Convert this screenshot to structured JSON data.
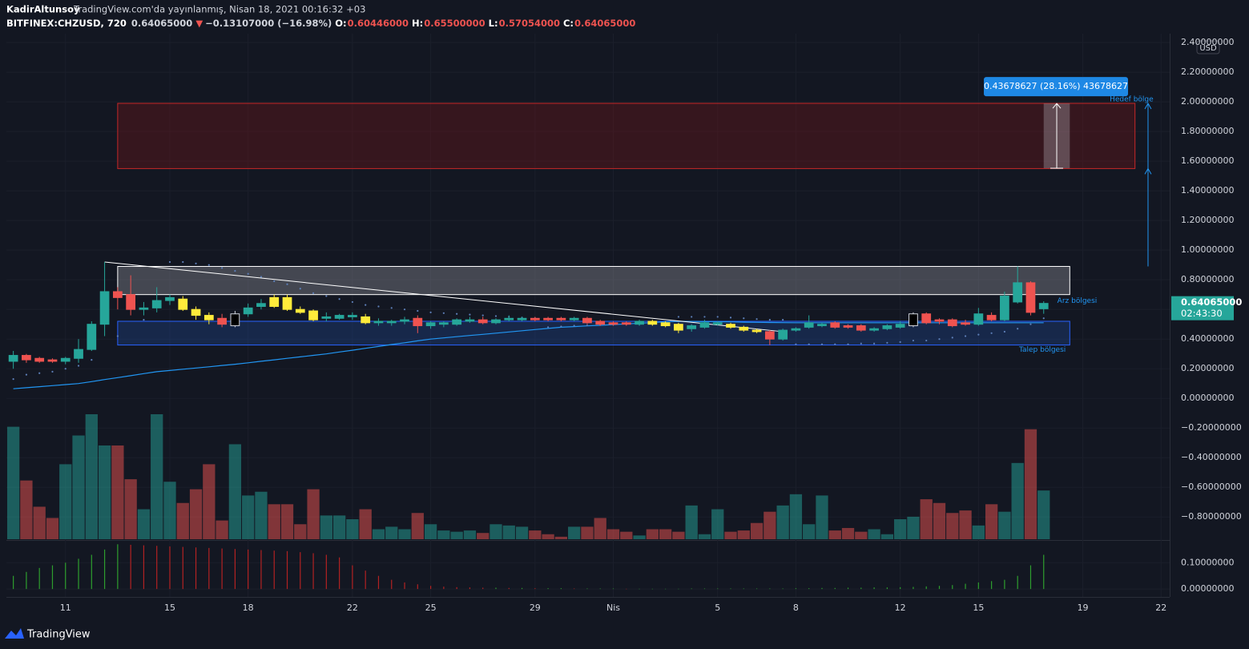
{
  "chart_data": {
    "type": "candlestick",
    "author": "KadirAltunsoy",
    "published": "TradingView.com'da yayınlanmış, Nisan 18, 2021 00:16:32 +03",
    "symbol": "BITFINEX:CHZUSD, 720",
    "last": "0.64065000",
    "change_arrow": "▼",
    "change": "−0.13107000 (−16.98%)",
    "ohlc": [
      {
        "key": "O:",
        "value": "0.60446000"
      },
      {
        "key": "H:",
        "value": "0.65500000"
      },
      {
        "key": "L:",
        "value": "0.57054000"
      },
      {
        "key": "C:",
        "value": "0.64065000"
      }
    ],
    "currency": "USD",
    "price_tag": {
      "value": "0.64065000",
      "countdown": "02:43:30"
    },
    "brand": "TradingView",
    "xlim": [
      -0.53,
      88.66
    ],
    "xticks": [
      {
        "value": 4,
        "label": "11"
      },
      {
        "value": 12,
        "label": "15"
      },
      {
        "value": 18,
        "label": "18"
      },
      {
        "value": 26,
        "label": "22"
      },
      {
        "value": 32,
        "label": "25"
      },
      {
        "value": 40,
        "label": "29"
      },
      {
        "value": 46,
        "label": "Nis"
      },
      {
        "value": 54,
        "label": "5"
      },
      {
        "value": 60,
        "label": "8"
      },
      {
        "value": 68,
        "label": "12"
      },
      {
        "value": 74,
        "label": "15"
      },
      {
        "value": 82,
        "label": "19"
      },
      {
        "value": 88,
        "label": "22"
      }
    ],
    "ylim": [
      -0.95,
      2.46
    ],
    "yticks": [
      {
        "value": 2.4,
        "label": "2.40000000"
      },
      {
        "value": 2.2,
        "label": "2.20000000"
      },
      {
        "value": 2.0,
        "label": "2.00000000"
      },
      {
        "value": 1.8,
        "label": "1.80000000"
      },
      {
        "value": 1.6,
        "label": "1.60000000"
      },
      {
        "value": 1.4,
        "label": "1.40000000"
      },
      {
        "value": 1.2,
        "label": "1.20000000"
      },
      {
        "value": 1.0,
        "label": "1.00000000"
      },
      {
        "value": 0.8,
        "label": "0.80000000"
      },
      {
        "value": 0.6,
        "label": "0.60000000"
      },
      {
        "value": 0.4,
        "label": "0.40000000"
      },
      {
        "value": 0.2,
        "label": "0.20000000"
      },
      {
        "value": 0,
        "label": "0.00000000"
      },
      {
        "value": -0.2,
        "label": "−0.20000000"
      },
      {
        "value": -0.4,
        "label": "−0.40000000"
      },
      {
        "value": -0.6,
        "label": "−0.60000000"
      },
      {
        "value": -0.8,
        "label": "−0.80000000"
      }
    ],
    "y2lim": [
      -0.03,
      0.18
    ],
    "y2ticks": [
      {
        "value": 0.1,
        "label": "0.10000000"
      },
      {
        "value": 0,
        "label": "0.00000000"
      }
    ],
    "grid": true,
    "candles": [
      [
        0.25,
        0.32,
        0.2,
        0.29
      ],
      [
        0.29,
        0.3,
        0.24,
        0.26
      ],
      [
        0.27,
        0.28,
        0.24,
        0.25
      ],
      [
        0.26,
        0.27,
        0.24,
        0.25
      ],
      [
        0.25,
        0.28,
        0.23,
        0.27
      ],
      [
        0.27,
        0.4,
        0.24,
        0.33
      ],
      [
        0.33,
        0.52,
        0.32,
        0.5
      ],
      [
        0.5,
        0.92,
        0.42,
        0.72
      ],
      [
        0.72,
        0.75,
        0.6,
        0.68
      ],
      [
        0.7,
        0.83,
        0.56,
        0.6
      ],
      [
        0.6,
        0.65,
        0.56,
        0.61
      ],
      [
        0.61,
        0.75,
        0.58,
        0.66
      ],
      [
        0.66,
        0.7,
        0.63,
        0.68
      ],
      [
        0.67,
        0.69,
        0.59,
        0.6
      ],
      [
        0.6,
        0.62,
        0.53,
        0.56
      ],
      [
        0.56,
        0.58,
        0.5,
        0.53
      ],
      [
        0.54,
        0.57,
        0.48,
        0.5
      ],
      [
        0.49,
        0.59,
        0.48,
        0.57
      ],
      [
        0.57,
        0.64,
        0.55,
        0.61
      ],
      [
        0.62,
        0.67,
        0.6,
        0.64
      ],
      [
        0.68,
        0.7,
        0.61,
        0.62
      ],
      [
        0.68,
        0.7,
        0.59,
        0.6
      ],
      [
        0.6,
        0.62,
        0.57,
        0.58
      ],
      [
        0.59,
        0.6,
        0.52,
        0.53
      ],
      [
        0.54,
        0.58,
        0.52,
        0.55
      ],
      [
        0.54,
        0.57,
        0.53,
        0.56
      ],
      [
        0.55,
        0.58,
        0.53,
        0.56
      ],
      [
        0.55,
        0.57,
        0.5,
        0.51
      ],
      [
        0.51,
        0.54,
        0.49,
        0.52
      ],
      [
        0.51,
        0.53,
        0.49,
        0.52
      ],
      [
        0.52,
        0.55,
        0.5,
        0.53
      ],
      [
        0.54,
        0.56,
        0.44,
        0.49
      ],
      [
        0.49,
        0.52,
        0.47,
        0.51
      ],
      [
        0.5,
        0.52,
        0.48,
        0.51
      ],
      [
        0.5,
        0.54,
        0.49,
        0.53
      ],
      [
        0.52,
        0.55,
        0.51,
        0.53
      ],
      [
        0.53,
        0.55,
        0.5,
        0.51
      ],
      [
        0.51,
        0.54,
        0.5,
        0.53
      ],
      [
        0.53,
        0.56,
        0.52,
        0.54
      ],
      [
        0.53,
        0.55,
        0.52,
        0.54
      ],
      [
        0.54,
        0.55,
        0.52,
        0.53
      ],
      [
        0.54,
        0.55,
        0.52,
        0.53
      ],
      [
        0.54,
        0.55,
        0.52,
        0.53
      ],
      [
        0.53,
        0.55,
        0.52,
        0.54
      ],
      [
        0.54,
        0.55,
        0.5,
        0.51
      ],
      [
        0.52,
        0.53,
        0.49,
        0.5
      ],
      [
        0.51,
        0.52,
        0.49,
        0.5
      ],
      [
        0.51,
        0.52,
        0.49,
        0.5
      ],
      [
        0.5,
        0.53,
        0.49,
        0.52
      ],
      [
        0.52,
        0.53,
        0.49,
        0.5
      ],
      [
        0.51,
        0.52,
        0.48,
        0.49
      ],
      [
        0.5,
        0.51,
        0.44,
        0.46
      ],
      [
        0.47,
        0.5,
        0.45,
        0.49
      ],
      [
        0.48,
        0.53,
        0.47,
        0.51
      ],
      [
        0.5,
        0.52,
        0.49,
        0.51
      ],
      [
        0.5,
        0.51,
        0.47,
        0.48
      ],
      [
        0.48,
        0.49,
        0.45,
        0.46
      ],
      [
        0.46,
        0.47,
        0.44,
        0.45
      ],
      [
        0.45,
        0.46,
        0.36,
        0.4
      ],
      [
        0.4,
        0.47,
        0.39,
        0.46
      ],
      [
        0.46,
        0.48,
        0.45,
        0.47
      ],
      [
        0.48,
        0.56,
        0.47,
        0.51
      ],
      [
        0.49,
        0.51,
        0.48,
        0.5
      ],
      [
        0.51,
        0.52,
        0.47,
        0.48
      ],
      [
        0.49,
        0.5,
        0.47,
        0.48
      ],
      [
        0.49,
        0.5,
        0.45,
        0.46
      ],
      [
        0.46,
        0.48,
        0.45,
        0.47
      ],
      [
        0.47,
        0.5,
        0.46,
        0.49
      ],
      [
        0.48,
        0.52,
        0.47,
        0.5
      ],
      [
        0.49,
        0.58,
        0.48,
        0.57
      ],
      [
        0.57,
        0.58,
        0.5,
        0.51
      ],
      [
        0.53,
        0.54,
        0.5,
        0.52
      ],
      [
        0.53,
        0.54,
        0.48,
        0.49
      ],
      [
        0.51,
        0.53,
        0.49,
        0.5
      ],
      [
        0.5,
        0.61,
        0.49,
        0.57
      ],
      [
        0.56,
        0.58,
        0.52,
        0.53
      ],
      [
        0.53,
        0.72,
        0.52,
        0.69
      ],
      [
        0.65,
        0.89,
        0.64,
        0.78
      ],
      [
        0.78,
        0.79,
        0.56,
        0.58
      ],
      [
        0.60446,
        0.655,
        0.57054,
        0.64065
      ]
    ],
    "candle_colors": [
      "#26a69a",
      "#ef5350",
      "#ef5350",
      "#ef5350",
      "#26a69a",
      "#26a69a",
      "#26a69a",
      "#26a69a",
      "#ef5350",
      "#ef5350",
      "#26a69a",
      "#26a69a",
      "#26a69a",
      "#ffeb3b",
      "#ffeb3b",
      "#ffeb3b",
      "#ef5350",
      "#000000",
      "#26a69a",
      "#26a69a",
      "#ffeb3b",
      "#ffeb3b",
      "#ffeb3b",
      "#ffeb3b",
      "#26a69a",
      "#26a69a",
      "#26a69a",
      "#ffeb3b",
      "#26a69a",
      "#26a69a",
      "#26a69a",
      "#ef5350",
      "#26a69a",
      "#26a69a",
      "#26a69a",
      "#26a69a",
      "#ef5350",
      "#26a69a",
      "#26a69a",
      "#26a69a",
      "#ef5350",
      "#ef5350",
      "#ef5350",
      "#26a69a",
      "#ef5350",
      "#ef5350",
      "#ef5350",
      "#ef5350",
      "#26a69a",
      "#ffeb3b",
      "#ffeb3b",
      "#ffeb3b",
      "#26a69a",
      "#26a69a",
      "#26a69a",
      "#ffeb3b",
      "#ffeb3b",
      "#ffeb3b",
      "#ef5350",
      "#26a69a",
      "#26a69a",
      "#26a69a",
      "#26a69a",
      "#ef5350",
      "#ef5350",
      "#ef5350",
      "#26a69a",
      "#26a69a",
      "#26a69a",
      "#000000",
      "#ef5350",
      "#ef5350",
      "#ef5350",
      "#ef5350",
      "#26a69a",
      "#ef5350",
      "#26a69a",
      "#26a69a",
      "#ef5350",
      "#26a69a"
    ],
    "volume": [
      90,
      47,
      26,
      17,
      60,
      83,
      100,
      75,
      75,
      48,
      24,
      100,
      46,
      29,
      40,
      60,
      15,
      76,
      35,
      38,
      28,
      28,
      12,
      40,
      19,
      19,
      16,
      24,
      8,
      10,
      8,
      21,
      12,
      7,
      6,
      7,
      5,
      12,
      11,
      10,
      7,
      4,
      2,
      10,
      10,
      17,
      8,
      6,
      3,
      8,
      8,
      6,
      27,
      4,
      24,
      6,
      7,
      13,
      22,
      27,
      36,
      12,
      35,
      7,
      9,
      6,
      8,
      4,
      16,
      18,
      32,
      29,
      21,
      23,
      11,
      28,
      22,
      61,
      88,
      39
    ],
    "volume_colors": {
      "up": "rgba(38,166,154,0.5)",
      "down": "rgba(239,83,80,0.5)"
    },
    "ma": {
      "color": "#2196f3",
      "values": [
        0.065,
        0.072,
        0.079,
        0.086,
        0.093,
        0.1,
        0.113,
        0.127,
        0.14,
        0.153,
        0.167,
        0.18,
        0.188,
        0.197,
        0.205,
        0.213,
        0.222,
        0.23,
        0.24,
        0.25,
        0.26,
        0.27,
        0.28,
        0.29,
        0.3,
        0.313,
        0.325,
        0.338,
        0.35,
        0.363,
        0.375,
        0.388,
        0.4,
        0.408,
        0.416,
        0.424,
        0.432,
        0.44,
        0.448,
        0.456,
        0.464,
        0.472,
        0.48,
        0.484,
        0.489,
        0.493,
        0.498,
        0.502,
        0.507,
        0.511,
        0.516,
        0.52,
        0.519,
        0.518,
        0.517,
        0.516,
        0.514,
        0.513,
        0.512,
        0.511,
        0.51,
        0.51,
        0.51,
        0.51,
        0.51,
        0.51,
        0.51,
        0.51,
        0.51,
        0.51,
        0.51,
        0.51,
        0.51,
        0.51,
        0.51,
        0.51,
        0.51,
        0.51,
        0.51,
        0.51
      ]
    },
    "sar": {
      "color": "#5d7fb8",
      "values": [
        0.13,
        0.16,
        0.17,
        0.18,
        0.2,
        0.22,
        0.26,
        null,
        0.42,
        null,
        0.53,
        null,
        0.92,
        0.92,
        0.91,
        0.9,
        0.88,
        0.86,
        0.84,
        0.82,
        0.79,
        0.77,
        0.74,
        0.71,
        0.69,
        0.67,
        0.65,
        0.63,
        0.62,
        0.61,
        0.6,
        0.59,
        0.58,
        0.575,
        0.57,
        0.565,
        0.56,
        0.555,
        0.55,
        0.545,
        0.54,
        0.48,
        0.485,
        0.49,
        0.492,
        0.495,
        0.498,
        0.5,
        0.5,
        0.5,
        0.505,
        0.55,
        0.55,
        0.55,
        0.55,
        0.545,
        0.54,
        0.535,
        0.53,
        0.53,
        0.365,
        0.365,
        0.365,
        0.365,
        0.365,
        0.37,
        0.37,
        0.375,
        0.38,
        0.39,
        0.39,
        0.4,
        0.41,
        0.42,
        0.43,
        0.44,
        0.45,
        0.47,
        0.5,
        0.54
      ]
    },
    "oscillator": {
      "colors": {
        "rising": "#2e9e2e",
        "falling": "#b22222"
      },
      "values": [
        0.05,
        0.065,
        0.08,
        0.09,
        0.1,
        0.115,
        0.13,
        0.15,
        0.17,
        0.168,
        0.166,
        0.164,
        0.162,
        0.16,
        0.158,
        0.156,
        0.154,
        0.152,
        0.15,
        0.148,
        0.146,
        0.144,
        0.14,
        0.136,
        0.13,
        0.12,
        0.09,
        0.07,
        0.05,
        0.035,
        0.025,
        0.018,
        0.012,
        0.009,
        0.007,
        0.006,
        0.005,
        0.005,
        0.004,
        0.004,
        0.003,
        0.003,
        0.003,
        0.002,
        0.002,
        0.002,
        0.002,
        0.001,
        0.001,
        0.001,
        0.001,
        0.001,
        0.002,
        0.002,
        0.002,
        0.002,
        0.002,
        0.002,
        0.002,
        0.002,
        0.003,
        0.003,
        0.004,
        0.004,
        0.005,
        0.005,
        0.006,
        0.006,
        0.007,
        0.008,
        0.01,
        0.012,
        0.015,
        0.02,
        0.025,
        0.03,
        0.035,
        0.05,
        0.09,
        0.13
      ]
    },
    "zones": [
      {
        "name": "Hedef bölge",
        "range": [
          1.55,
          1.99
        ],
        "span": [
          8,
          86
        ],
        "fill": "rgba(120,20,24,0.35)",
        "stroke": "#c62828"
      },
      {
        "name": "Arz bölgesi",
        "range": [
          0.7,
          0.89
        ],
        "span": [
          8,
          81
        ],
        "fill": "rgba(160,160,170,0.35)",
        "stroke": "#ffffff"
      },
      {
        "name": "Talep bölgesi",
        "range": [
          0.36,
          0.52
        ],
        "span": [
          8,
          81
        ],
        "fill": "rgba(33,80,170,0.3)",
        "stroke": "#2962ff"
      }
    ],
    "trendline": {
      "from": [
        7,
        0.92
      ],
      "to": [
        59,
        0.45
      ],
      "color": "#ffffff"
    },
    "arrow": {
      "at": 87,
      "range": [
        0.89,
        1.99
      ],
      "color": "#2196f3"
    },
    "measure": {
      "label": "0.43678627 (28.16%) 43678627",
      "range": [
        1.5522,
        1.989
      ],
      "span": [
        79,
        81
      ]
    }
  }
}
